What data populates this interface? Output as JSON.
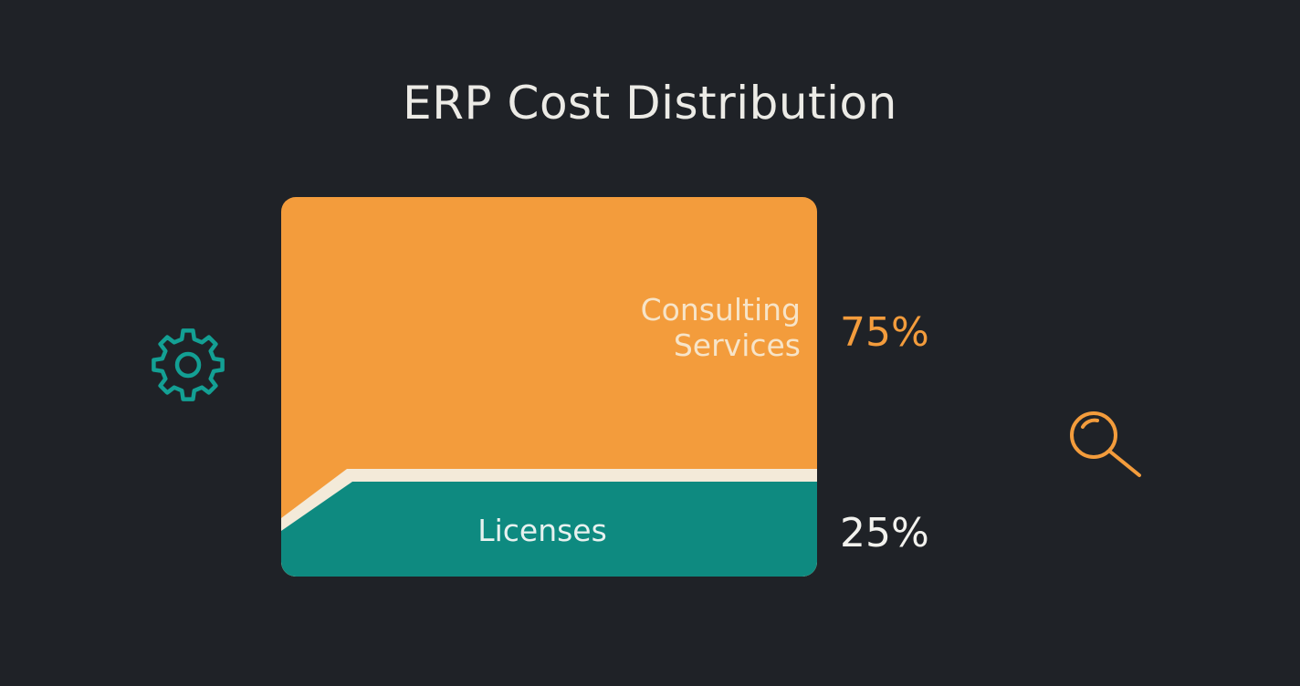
{
  "title": "ERP Cost Distribution",
  "colors": {
    "background": "#1f2227",
    "consulting": "#f39c3c",
    "licenses": "#0e8a80",
    "divider": "#f3ead9",
    "consulting_text": "#f7e4c8",
    "licenses_text": "#e7f1ef",
    "pct_consulting": "#f39c3c",
    "pct_licenses": "#f2f2ee"
  },
  "icons": {
    "left": "gear-icon",
    "right": "search-icon"
  },
  "chart_data": {
    "type": "bar",
    "stacked": true,
    "title": "ERP Cost Distribution",
    "categories": [
      "Consulting Services",
      "Licenses"
    ],
    "values": [
      75,
      25
    ],
    "unit": "%",
    "series": [
      {
        "name": "Consulting Services",
        "value": 75,
        "label": "75%"
      },
      {
        "name": "Licenses",
        "value": 25,
        "label": "25%"
      }
    ]
  }
}
